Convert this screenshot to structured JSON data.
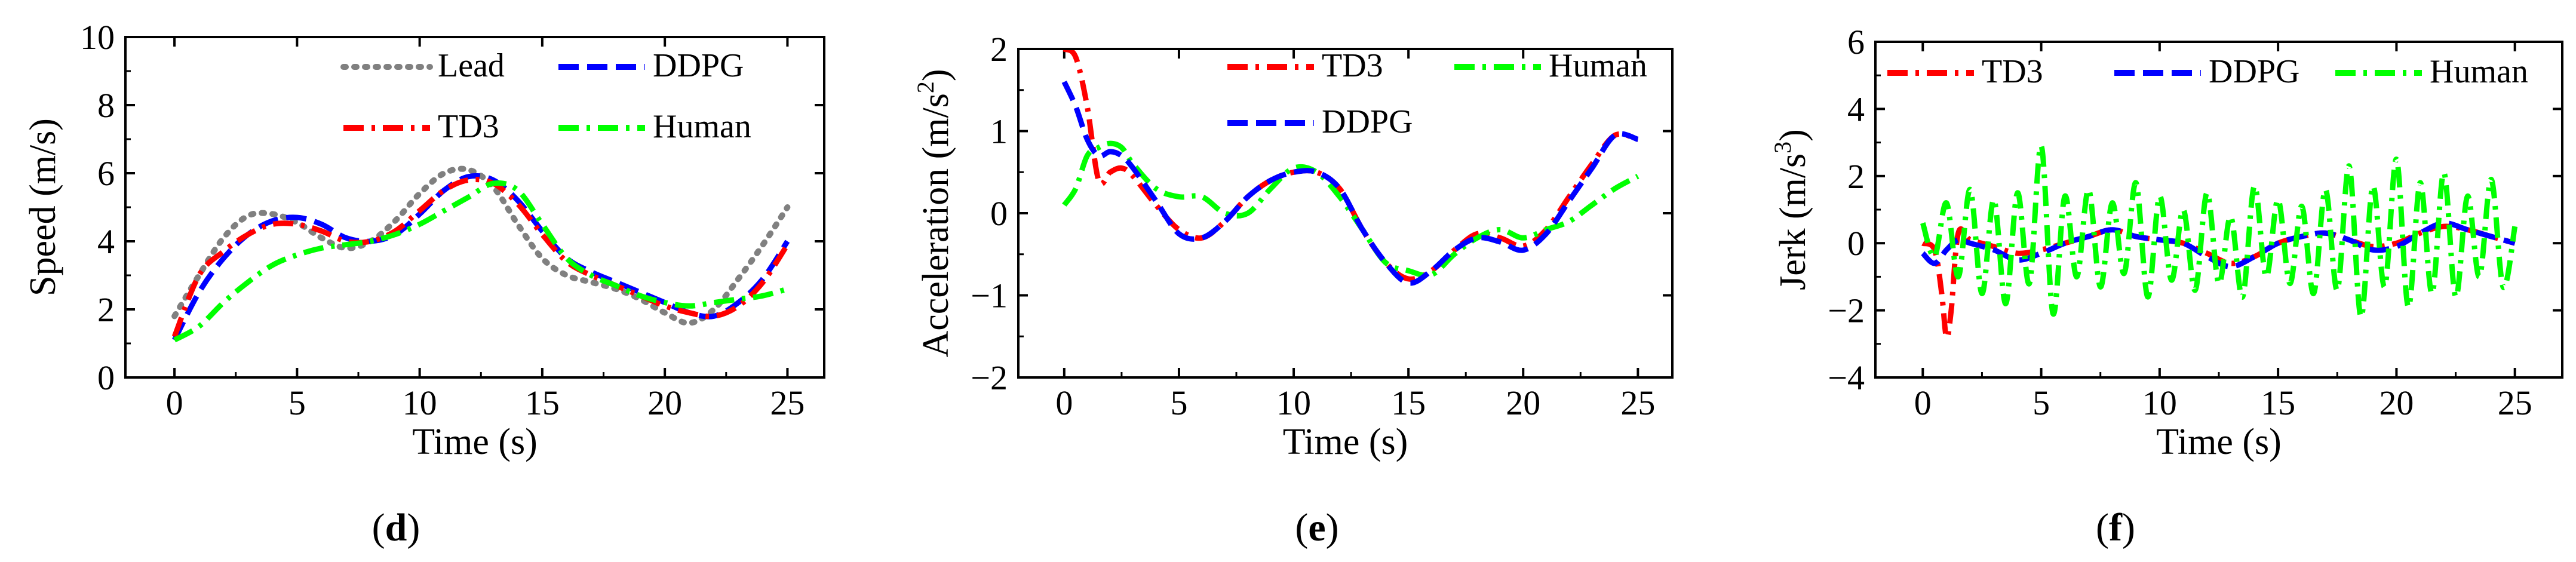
{
  "figure": {
    "panels": [
      {
        "open": "(",
        "letter": "d",
        "close": ")"
      },
      {
        "open": "(",
        "letter": "e",
        "close": ")"
      },
      {
        "open": "(",
        "letter": "f",
        "close": ")"
      }
    ]
  },
  "chart_data": [
    {
      "type": "line",
      "panel": "d",
      "title": "",
      "xlabel": "Time (s)",
      "ylabel": "Speed (m/s)",
      "xlim": [
        -2,
        26.5
      ],
      "ylim": [
        0,
        10
      ],
      "xticks": [
        0,
        5,
        10,
        15,
        20,
        25
      ],
      "yticks": [
        0,
        2,
        4,
        6,
        8,
        10
      ],
      "legend": {
        "placement": "top-right",
        "columns": 2
      },
      "series": [
        {
          "name": "Lead",
          "color": "#808080",
          "style": "dotted",
          "x": [
            0,
            1,
            2,
            3,
            4,
            5,
            6,
            7,
            8,
            9,
            10,
            11,
            12,
            13,
            14,
            15,
            16,
            17,
            18,
            19,
            20,
            21,
            22,
            23,
            24,
            25
          ],
          "y": [
            1.8,
            3.0,
            4.1,
            4.75,
            4.8,
            4.55,
            4.1,
            3.8,
            4.0,
            4.6,
            5.4,
            6.0,
            6.1,
            5.6,
            4.5,
            3.5,
            3.0,
            2.8,
            2.6,
            2.3,
            1.9,
            1.6,
            2.0,
            2.9,
            3.9,
            5.0
          ]
        },
        {
          "name": "DDPG",
          "color": "#0000ff",
          "style": "dashed",
          "x": [
            0,
            1,
            2,
            3,
            4,
            5,
            6,
            7,
            8,
            9,
            10,
            11,
            12,
            13,
            14,
            15,
            16,
            17,
            18,
            19,
            20,
            21,
            22,
            23,
            24,
            25
          ],
          "y": [
            1.1,
            2.5,
            3.5,
            4.2,
            4.6,
            4.7,
            4.5,
            4.1,
            4.0,
            4.2,
            4.8,
            5.5,
            5.9,
            5.8,
            5.2,
            4.3,
            3.5,
            3.1,
            2.8,
            2.5,
            2.2,
            1.9,
            1.8,
            2.2,
            2.9,
            4.0
          ]
        },
        {
          "name": "TD3",
          "color": "#ff0000",
          "style": "dash-dot",
          "x": [
            0,
            1,
            2,
            3,
            4,
            5,
            6,
            7,
            8,
            9,
            10,
            11,
            12,
            13,
            14,
            15,
            16,
            17,
            18,
            19,
            20,
            21,
            22,
            23,
            24,
            25
          ],
          "y": [
            1.2,
            3.0,
            3.7,
            4.2,
            4.5,
            4.5,
            4.3,
            4.0,
            4.0,
            4.3,
            4.9,
            5.5,
            5.8,
            5.7,
            5.1,
            4.2,
            3.4,
            3.0,
            2.7,
            2.4,
            2.1,
            1.9,
            1.8,
            2.1,
            2.8,
            3.9
          ]
        },
        {
          "name": "Human",
          "color": "#00ff00",
          "style": "dash-dot",
          "x": [
            0,
            1,
            2,
            3,
            4,
            5,
            6,
            7,
            8,
            9,
            10,
            11,
            12,
            13,
            14,
            15,
            16,
            17,
            18,
            19,
            20,
            21,
            22,
            23,
            24,
            25
          ],
          "y": [
            1.1,
            1.5,
            2.2,
            2.8,
            3.3,
            3.6,
            3.8,
            3.9,
            4.0,
            4.2,
            4.5,
            4.9,
            5.3,
            5.7,
            5.5,
            4.5,
            3.5,
            3.0,
            2.7,
            2.4,
            2.2,
            2.1,
            2.2,
            2.3,
            2.4,
            2.6
          ]
        }
      ]
    },
    {
      "type": "line",
      "panel": "e",
      "title": "",
      "xlabel": "Time (s)",
      "ylabel_prefix": "Acceleration (m/s",
      "ylabel_exp": "2",
      "ylabel_suffix": ")",
      "xlim": [
        -2,
        26.5
      ],
      "ylim": [
        -2,
        2
      ],
      "xticks": [
        0,
        5,
        10,
        15,
        20,
        25
      ],
      "yticks": [
        -2,
        -1,
        0,
        1,
        2
      ],
      "legend": {
        "placement": "top",
        "columns": 2
      },
      "series": [
        {
          "name": "TD3",
          "color": "#ff0000",
          "style": "dash-dot",
          "x": [
            0,
            0.5,
            1,
            1.5,
            2,
            2.5,
            3,
            4,
            5,
            6,
            7,
            8,
            9,
            10,
            11,
            12,
            13,
            14,
            15,
            16,
            17,
            18,
            19,
            20,
            21,
            22,
            23,
            24,
            25
          ],
          "y": [
            2.0,
            1.9,
            1.3,
            0.4,
            0.5,
            0.55,
            0.45,
            0.1,
            -0.2,
            -0.3,
            -0.1,
            0.2,
            0.4,
            0.5,
            0.5,
            0.3,
            -0.2,
            -0.6,
            -0.8,
            -0.7,
            -0.45,
            -0.25,
            -0.3,
            -0.4,
            -0.2,
            0.2,
            0.6,
            0.95,
            0.9
          ]
        },
        {
          "name": "Human",
          "color": "#00ff00",
          "style": "dash-dot",
          "x": [
            0,
            0.5,
            1,
            1.5,
            2,
            2.5,
            3,
            4,
            5,
            6,
            7,
            8,
            9,
            10,
            11,
            12,
            13,
            14,
            15,
            16,
            17,
            18,
            19,
            20,
            21,
            22,
            23,
            24,
            25
          ],
          "y": [
            0.1,
            0.3,
            0.7,
            0.8,
            0.85,
            0.8,
            0.6,
            0.3,
            0.2,
            0.2,
            0.0,
            0.0,
            0.3,
            0.55,
            0.5,
            0.2,
            -0.2,
            -0.6,
            -0.7,
            -0.75,
            -0.5,
            -0.3,
            -0.2,
            -0.3,
            -0.2,
            -0.1,
            0.1,
            0.3,
            0.45
          ]
        },
        {
          "name": "DDPG",
          "color": "#0000ff",
          "style": "dashed",
          "x": [
            0,
            0.5,
            1,
            1.5,
            2,
            2.5,
            3,
            4,
            5,
            6,
            7,
            8,
            9,
            10,
            11,
            12,
            13,
            14,
            15,
            16,
            17,
            18,
            19,
            20,
            21,
            22,
            23,
            24,
            25
          ],
          "y": [
            1.6,
            1.3,
            0.9,
            0.7,
            0.75,
            0.7,
            0.55,
            0.15,
            -0.25,
            -0.3,
            -0.1,
            0.2,
            0.4,
            0.5,
            0.5,
            0.3,
            -0.2,
            -0.6,
            -0.85,
            -0.7,
            -0.45,
            -0.3,
            -0.35,
            -0.45,
            -0.25,
            0.15,
            0.55,
            0.95,
            0.9
          ]
        }
      ]
    },
    {
      "type": "line",
      "panel": "f",
      "title": "",
      "xlabel": "Time (s)",
      "ylabel_prefix": "Jerk (m/s",
      "ylabel_exp": "3",
      "ylabel_suffix": ")",
      "xlim": [
        -2,
        27
      ],
      "ylim": [
        -4,
        6
      ],
      "xticks": [
        0,
        5,
        10,
        15,
        20,
        25
      ],
      "yticks": [
        -4,
        -2,
        0,
        2,
        4,
        6
      ],
      "legend": {
        "placement": "top",
        "columns": 3
      },
      "series": [
        {
          "name": "TD3",
          "color": "#ff0000",
          "style": "dash-dot",
          "x": [
            0,
            0.5,
            0.8,
            1.0,
            1.2,
            1.5,
            2,
            3,
            4,
            5,
            6,
            7,
            8,
            9,
            10,
            11,
            12,
            13,
            14,
            15,
            16,
            17,
            18,
            19,
            20,
            21,
            22,
            23,
            24,
            25
          ],
          "y": [
            0.0,
            -0.2,
            -1.5,
            -2.8,
            -2.0,
            0.3,
            0.1,
            -0.1,
            -0.3,
            -0.2,
            0.0,
            0.2,
            0.4,
            0.2,
            0.1,
            0.0,
            -0.3,
            -0.6,
            -0.4,
            0.0,
            0.2,
            0.3,
            0.1,
            -0.1,
            0.0,
            0.3,
            0.5,
            0.4,
            0.2,
            0.0
          ]
        },
        {
          "name": "DDPG",
          "color": "#0000ff",
          "style": "dashed",
          "x": [
            0,
            0.5,
            1,
            1.5,
            2,
            3,
            4,
            5,
            6,
            7,
            8,
            9,
            10,
            11,
            12,
            13,
            14,
            15,
            16,
            17,
            18,
            19,
            20,
            21,
            22,
            23,
            24,
            25
          ],
          "y": [
            -0.3,
            -0.6,
            -0.2,
            0.1,
            0.0,
            -0.2,
            -0.5,
            -0.3,
            0.0,
            0.2,
            0.4,
            0.2,
            0.1,
            0.0,
            -0.4,
            -0.7,
            -0.4,
            0.0,
            0.2,
            0.3,
            0.1,
            -0.2,
            -0.1,
            0.3,
            0.6,
            0.4,
            0.2,
            0.0
          ]
        },
        {
          "name": "Human",
          "color": "#00ff00",
          "style": "dash-dot",
          "x": [
            0,
            0.5,
            1,
            1.5,
            2,
            2.5,
            3,
            3.5,
            4,
            4.5,
            5,
            5.5,
            6,
            6.5,
            7,
            7.5,
            8,
            8.5,
            9,
            9.5,
            10,
            10.5,
            11,
            11.5,
            12,
            12.5,
            13,
            13.5,
            14,
            14.5,
            15,
            15.5,
            16,
            16.5,
            17,
            17.5,
            18,
            18.5,
            19,
            19.5,
            20,
            20.5,
            21,
            21.5,
            22,
            22.5,
            23,
            23.5,
            24,
            24.5,
            25
          ],
          "y": [
            0.6,
            -0.4,
            1.2,
            -1.0,
            1.6,
            -1.5,
            1.3,
            -1.8,
            1.5,
            -1.2,
            2.9,
            -2.1,
            1.4,
            -1.0,
            1.6,
            -1.3,
            1.2,
            -0.9,
            1.8,
            -1.6,
            1.4,
            -1.1,
            1.0,
            -1.4,
            1.5,
            -1.2,
            0.8,
            -1.6,
            1.7,
            -1.0,
            1.3,
            -1.2,
            1.1,
            -1.5,
            1.6,
            -1.4,
            2.3,
            -2.2,
            1.7,
            -1.3,
            2.5,
            -1.9,
            1.8,
            -1.5,
            2.1,
            -1.6,
            1.4,
            -1.0,
            1.9,
            -1.3,
            0.5
          ]
        }
      ]
    }
  ]
}
